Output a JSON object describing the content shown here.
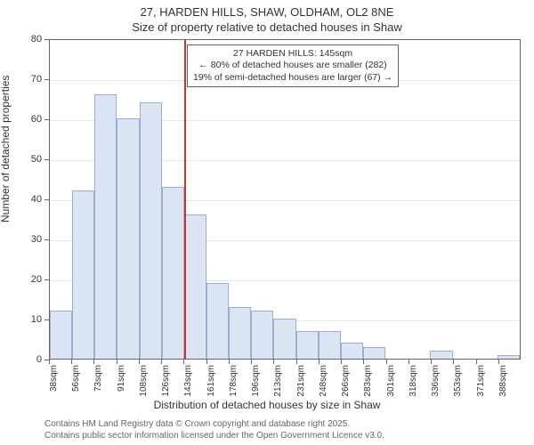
{
  "title": {
    "main": "27, HARDEN HILLS, SHAW, OLDHAM, OL2 8NE",
    "sub": "Size of property relative to detached houses in Shaw",
    "fontsize": 13,
    "color": "#333333"
  },
  "ylabel": {
    "text": "Number of detached properties",
    "fontsize": 12
  },
  "xlabel": {
    "text": "Distribution of detached houses by size in Shaw",
    "fontsize": 12
  },
  "chart": {
    "type": "histogram",
    "background_color": "#ffffff",
    "border_color": "#666666",
    "grid_color": "#e6e6e6",
    "ylim": [
      0,
      80
    ],
    "ytick_step": 10,
    "bar_fill": "#dbe4f3",
    "bar_border": "#9aaed0",
    "bar_border_width": 1,
    "categories": [
      "38sqm",
      "56sqm",
      "73sqm",
      "91sqm",
      "108sqm",
      "126sqm",
      "143sqm",
      "161sqm",
      "178sqm",
      "196sqm",
      "213sqm",
      "231sqm",
      "248sqm",
      "266sqm",
      "283sqm",
      "301sqm",
      "318sqm",
      "336sqm",
      "353sqm",
      "371sqm",
      "388sqm"
    ],
    "values": [
      12,
      42,
      66,
      60,
      64,
      43,
      36,
      19,
      13,
      12,
      10,
      7,
      7,
      4,
      3,
      0,
      0,
      2,
      0,
      0,
      1
    ],
    "xtick_fontsize": 10,
    "ytick_fontsize": 11,
    "marker_line": {
      "color": "#cc3333",
      "width": 2,
      "position_index": 6,
      "position_align": "left"
    },
    "annotation": {
      "lines": [
        "27 HARDEN HILLS: 145sqm",
        "← 80% of detached houses are smaller (282)",
        "19% of semi-detached houses are larger (67) →"
      ],
      "fontsize": 10.5,
      "border_color": "#666666",
      "background_color": "#ffffff",
      "top_y_value": 79,
      "left_index": 6.1
    }
  },
  "footer": {
    "line1": "Contains HM Land Registry data © Crown copyright and database right 2025.",
    "line2": "Contains public sector information licensed under the Open Government Licence v3.0.",
    "fontsize": 10,
    "color": "#666666"
  }
}
